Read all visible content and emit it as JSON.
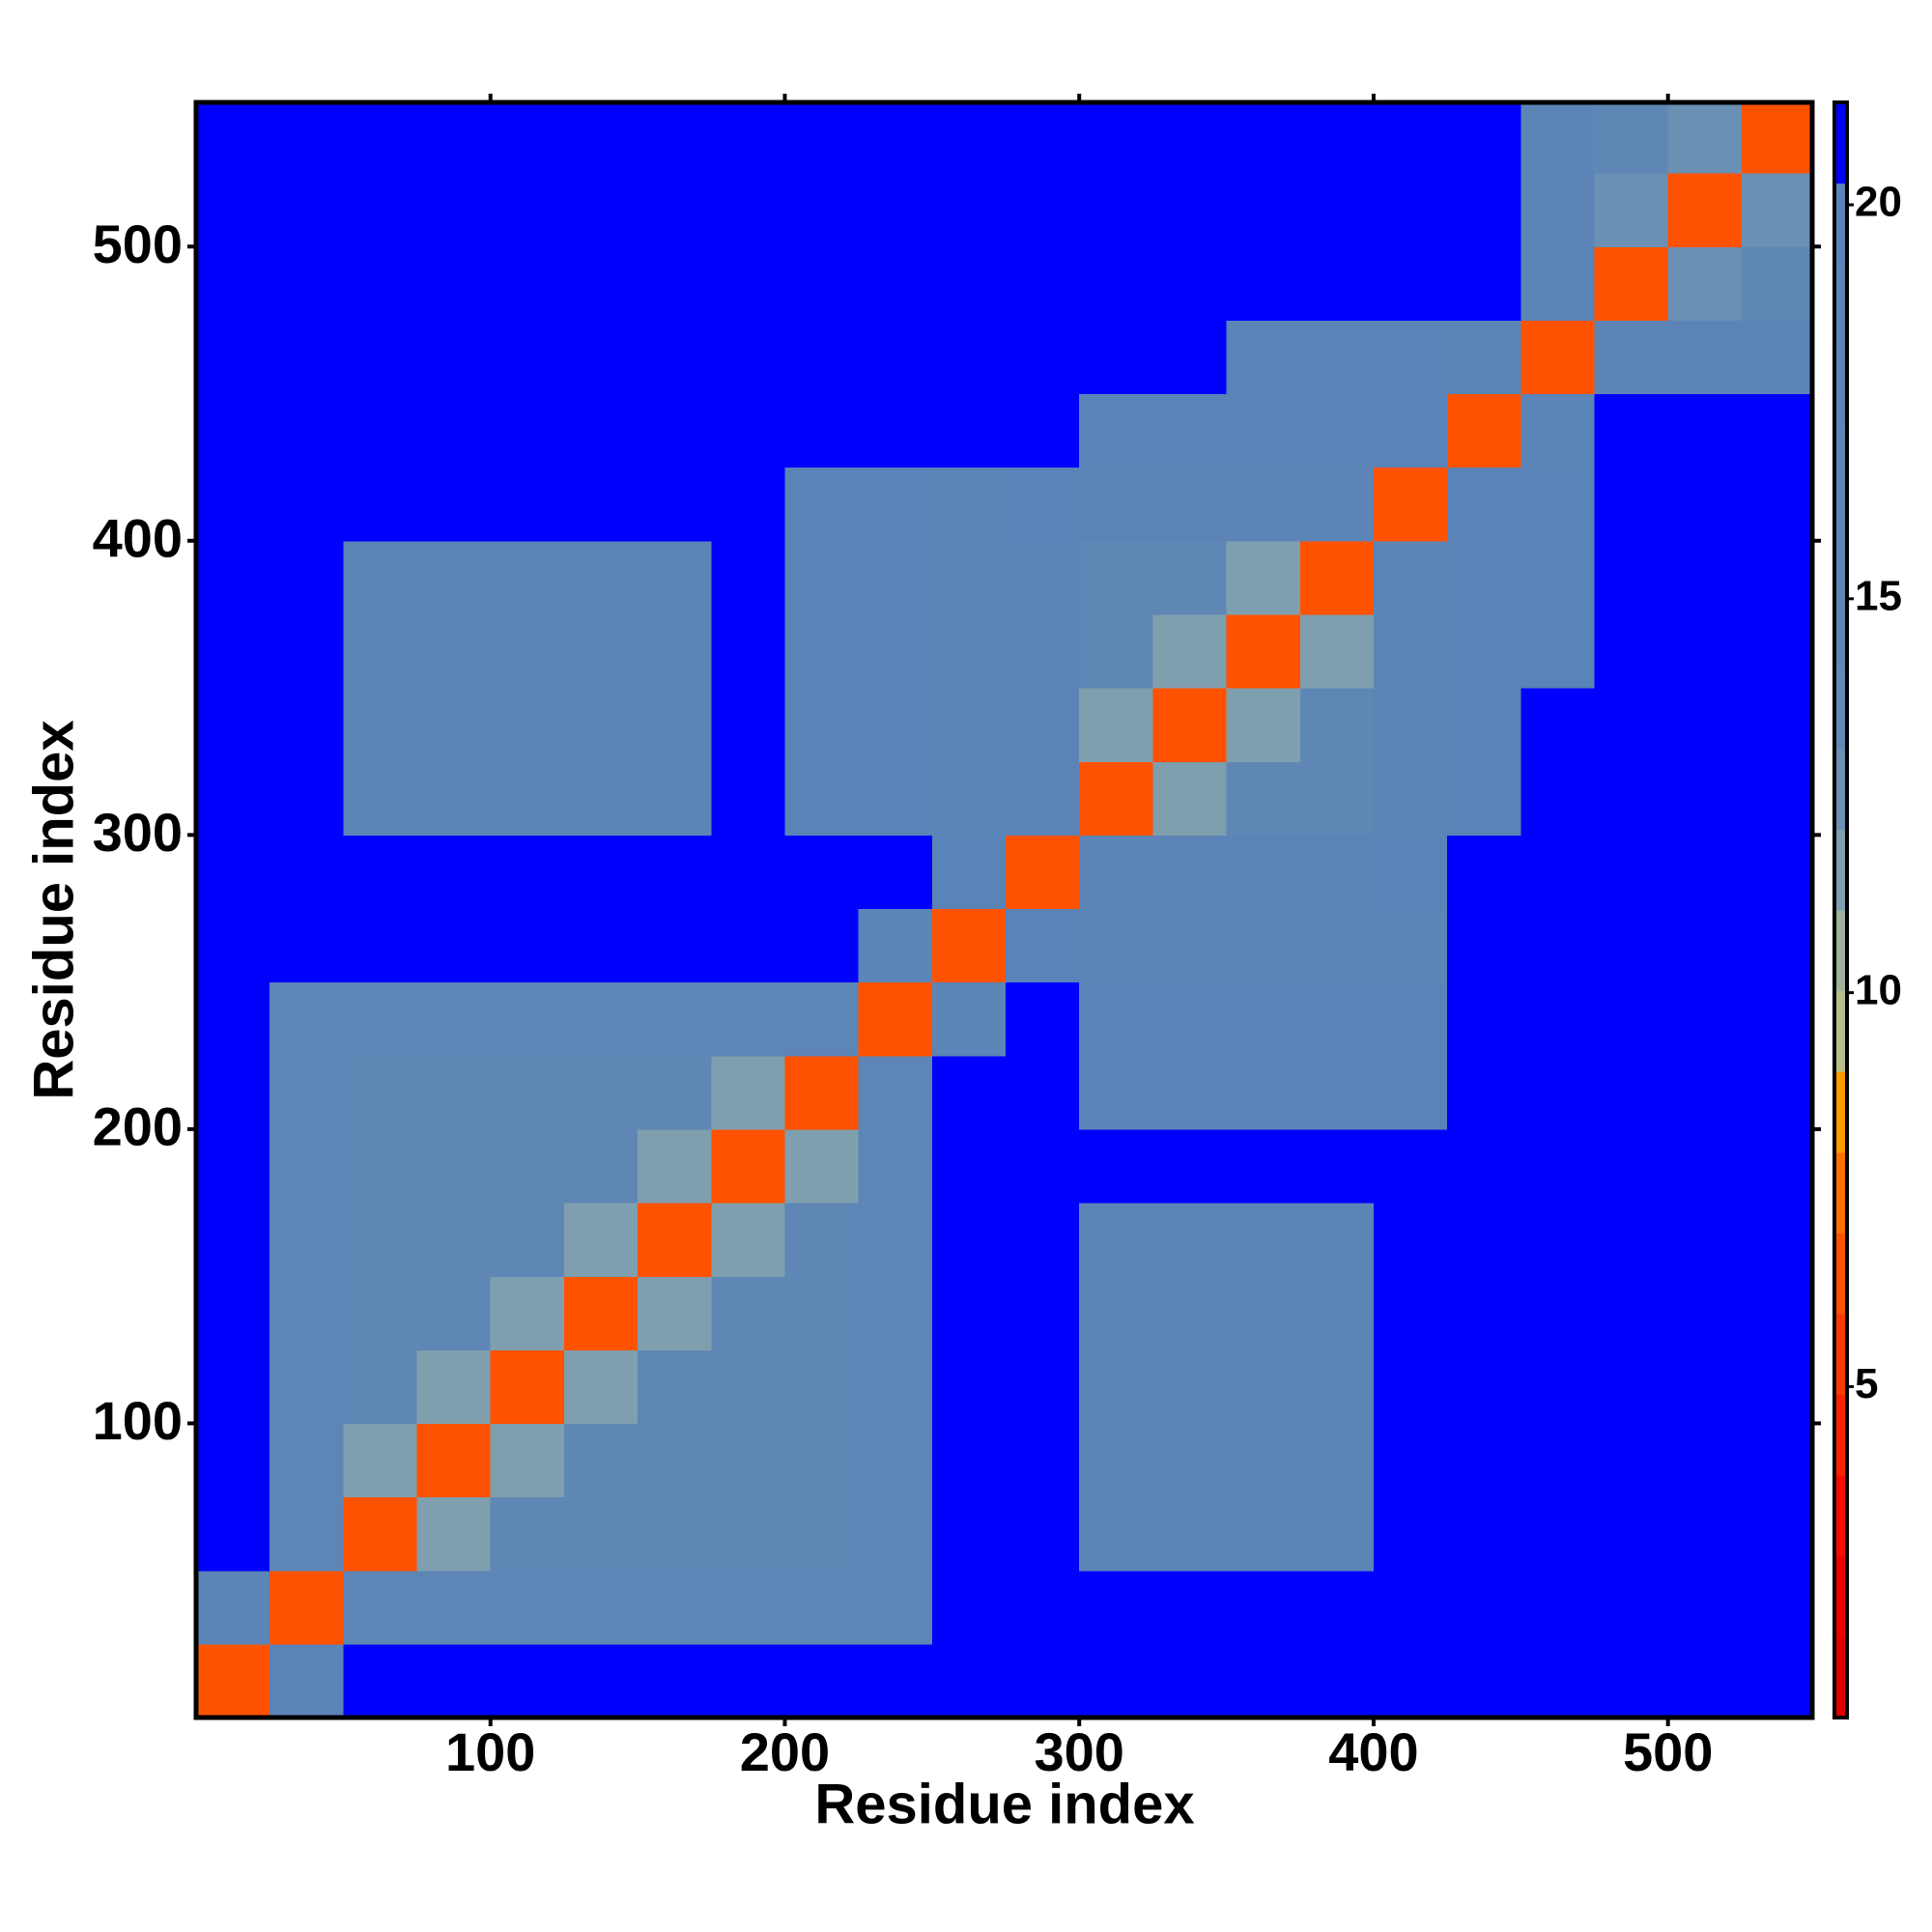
{
  "chart_data": {
    "type": "heatmap",
    "xlabel": "Residue index",
    "ylabel": "Residue index",
    "xlim": [
      0,
      549
    ],
    "ylim": [
      0,
      549
    ],
    "xticks": [
      100,
      200,
      300,
      400,
      500
    ],
    "yticks": [
      100,
      200,
      300,
      400,
      500
    ],
    "xbins": [
      0,
      25,
      50,
      75,
      100,
      125,
      150,
      175,
      200,
      225,
      250,
      275,
      300,
      325,
      350,
      375,
      400,
      425,
      450,
      475,
      500,
      525,
      549
    ],
    "ybins": [
      0,
      25,
      50,
      75,
      100,
      125,
      150,
      175,
      200,
      225,
      250,
      275,
      300,
      325,
      350,
      375,
      400,
      425,
      450,
      475,
      500,
      525,
      549
    ],
    "z": [
      [
        6,
        19,
        21,
        21,
        21,
        21,
        21,
        21,
        21,
        21,
        21,
        21,
        21,
        21,
        21,
        21,
        21,
        21,
        21,
        21,
        21,
        21
      ],
      [
        19,
        6,
        17,
        17,
        17,
        17,
        17,
        17,
        17,
        17,
        21,
        21,
        21,
        21,
        21,
        21,
        21,
        21,
        21,
        21,
        21,
        21
      ],
      [
        21,
        17,
        6,
        12,
        15,
        15,
        15,
        15,
        15,
        17,
        21,
        21,
        19,
        19,
        19,
        19,
        21,
        21,
        21,
        21,
        21,
        21
      ],
      [
        21,
        17,
        12,
        6,
        12,
        15,
        15,
        15,
        15,
        17,
        21,
        21,
        19,
        19,
        19,
        19,
        21,
        21,
        21,
        21,
        21,
        21
      ],
      [
        21,
        17,
        15,
        12,
        6,
        12,
        15,
        15,
        15,
        17,
        21,
        21,
        19,
        19,
        19,
        19,
        21,
        21,
        21,
        21,
        21,
        21
      ],
      [
        21,
        17,
        15,
        15,
        12,
        6,
        12,
        15,
        15,
        17,
        21,
        21,
        19,
        19,
        19,
        19,
        21,
        21,
        21,
        21,
        21,
        21
      ],
      [
        21,
        17,
        15,
        15,
        15,
        12,
        6,
        12,
        15,
        17,
        21,
        21,
        19,
        19,
        19,
        19,
        21,
        21,
        21,
        21,
        21,
        21
      ],
      [
        21,
        17,
        15,
        15,
        15,
        15,
        12,
        6,
        12,
        17,
        21,
        21,
        21,
        21,
        21,
        21,
        21,
        21,
        21,
        21,
        21,
        21
      ],
      [
        21,
        17,
        15,
        15,
        15,
        15,
        15,
        12,
        6,
        17,
        21,
        21,
        20,
        20,
        20,
        20,
        20,
        21,
        21,
        21,
        21,
        21
      ],
      [
        21,
        17,
        17,
        17,
        17,
        17,
        17,
        17,
        17,
        6,
        19,
        21,
        20,
        20,
        20,
        20,
        20,
        21,
        21,
        21,
        21,
        21
      ],
      [
        21,
        21,
        21,
        21,
        21,
        21,
        21,
        21,
        21,
        19,
        6,
        20,
        19,
        19,
        19,
        19,
        19,
        21,
        21,
        21,
        21,
        21
      ],
      [
        21,
        21,
        21,
        21,
        21,
        21,
        21,
        21,
        21,
        21,
        20,
        6,
        18,
        18,
        18,
        18,
        20,
        21,
        21,
        21,
        21,
        21
      ],
      [
        21,
        21,
        19,
        19,
        19,
        19,
        19,
        21,
        20,
        20,
        19,
        18,
        6,
        12,
        15,
        15,
        18,
        20,
        21,
        21,
        21,
        21
      ],
      [
        21,
        21,
        19,
        19,
        19,
        19,
        19,
        21,
        20,
        20,
        19,
        18,
        12,
        6,
        12,
        15,
        18,
        20,
        21,
        21,
        21,
        21
      ],
      [
        21,
        21,
        19,
        19,
        19,
        19,
        19,
        21,
        20,
        20,
        19,
        18,
        15,
        12,
        6,
        12,
        18,
        20,
        20,
        21,
        21,
        21
      ],
      [
        21,
        21,
        19,
        19,
        19,
        19,
        19,
        21,
        20,
        20,
        19,
        18,
        15,
        15,
        12,
        6,
        18,
        20,
        20,
        21,
        21,
        21
      ],
      [
        21,
        21,
        21,
        21,
        21,
        21,
        21,
        21,
        20,
        20,
        19,
        20,
        18,
        18,
        18,
        18,
        6,
        20,
        20,
        21,
        21,
        21
      ],
      [
        21,
        21,
        21,
        21,
        21,
        21,
        21,
        21,
        21,
        21,
        21,
        21,
        20,
        20,
        20,
        20,
        20,
        6,
        19,
        21,
        21,
        21
      ],
      [
        21,
        21,
        21,
        21,
        21,
        21,
        21,
        21,
        21,
        21,
        21,
        21,
        21,
        21,
        20,
        20,
        20,
        19,
        6,
        18,
        18,
        18
      ],
      [
        21,
        21,
        21,
        21,
        21,
        21,
        21,
        21,
        21,
        21,
        21,
        21,
        21,
        21,
        21,
        21,
        21,
        21,
        18,
        6,
        13,
        15
      ],
      [
        21,
        21,
        21,
        21,
        21,
        21,
        21,
        21,
        21,
        21,
        21,
        21,
        21,
        21,
        21,
        21,
        21,
        21,
        18,
        13,
        6,
        13
      ],
      [
        21,
        21,
        21,
        21,
        21,
        21,
        21,
        21,
        21,
        21,
        21,
        21,
        21,
        21,
        21,
        21,
        21,
        21,
        18,
        15,
        13,
        6
      ]
    ],
    "zlim": [
      0.8,
      21.3
    ],
    "zticks": [
      5,
      10,
      15,
      20
    ],
    "colorscale": [
      "#e00000",
      "#ee0000",
      "#ff0a00",
      "#ff2200",
      "#ff3a00",
      "#ff5200",
      "#ff7000",
      "#ff9a00",
      "#b8bd8a",
      "#9fb29c",
      "#7f9fae",
      "#6a90b4",
      "#6389b5",
      "#5f87b5",
      "#5e86b6",
      "#5d85b6",
      "#5c84b6",
      "#5b84b7",
      "#5a83b7",
      "#0000ff"
    ]
  }
}
